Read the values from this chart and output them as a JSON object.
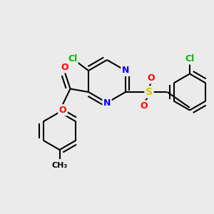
{
  "background_color": "#ebebeb",
  "atom_colors": {
    "Cl": "#00bb00",
    "N": "#0000ff",
    "O": "#ff0000",
    "S": "#cccc00",
    "C": "#000000"
  },
  "bond_width": 1.5,
  "figsize": [
    3.0,
    3.0
  ],
  "dpi": 100,
  "xlim": [
    0,
    10
  ],
  "ylim": [
    0,
    10
  ]
}
